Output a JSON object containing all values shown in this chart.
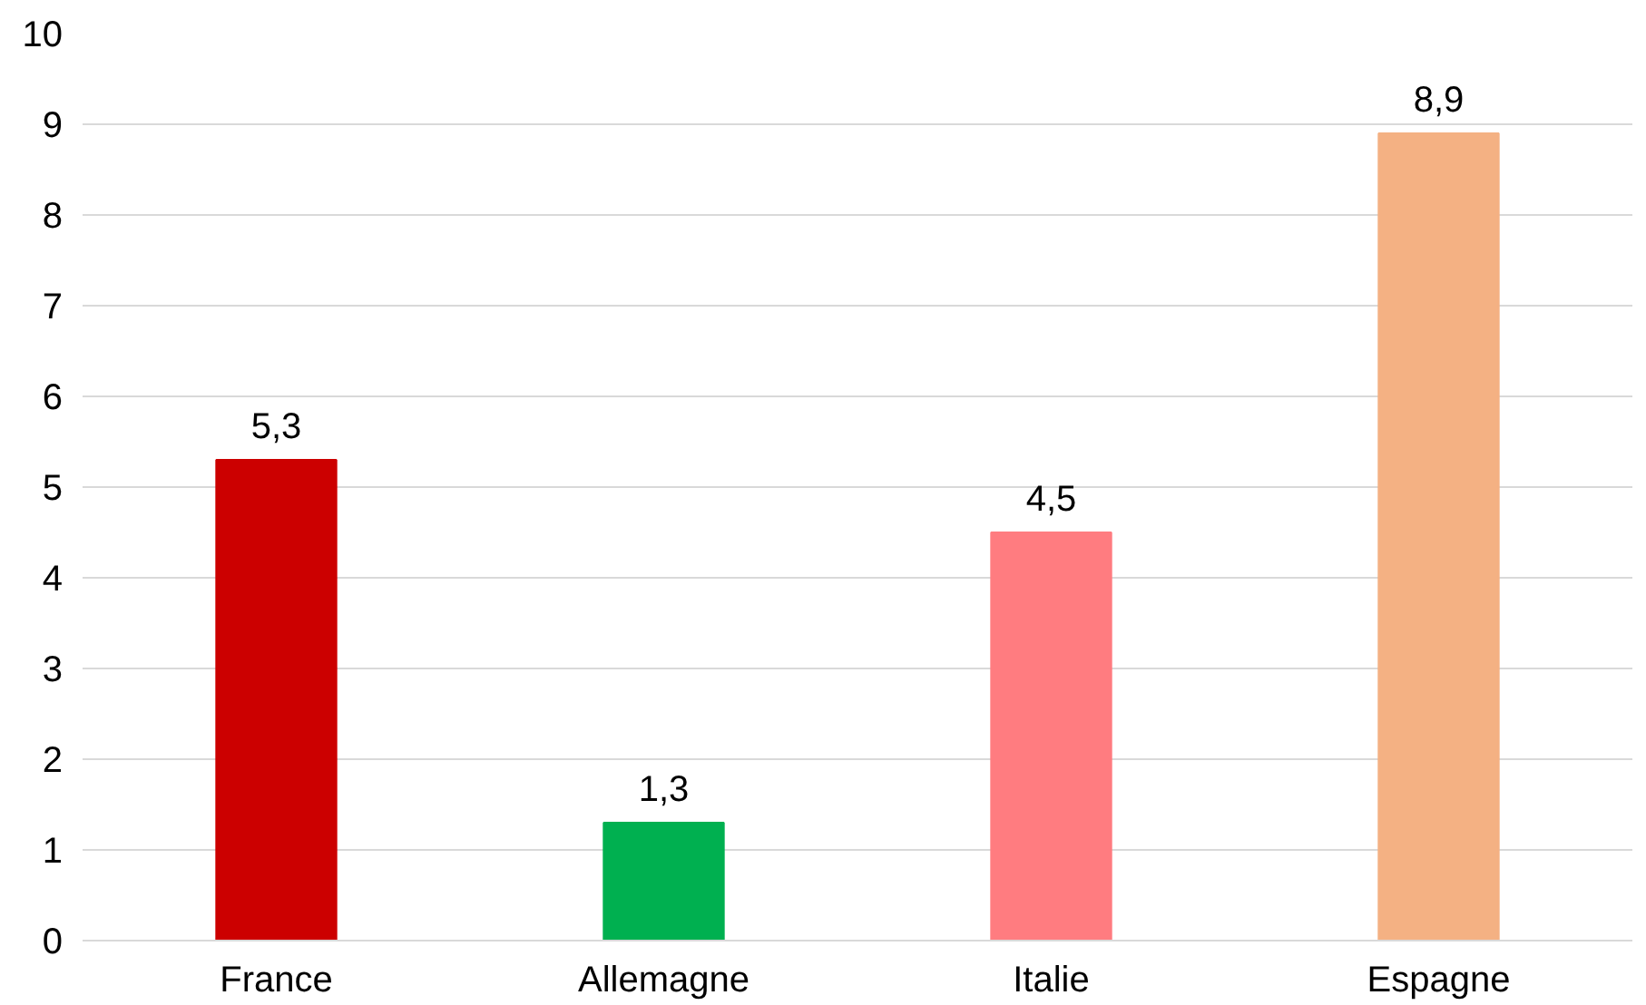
{
  "chart_data": {
    "type": "bar",
    "categories": [
      "France",
      "Allemagne",
      "Italie",
      "Espagne"
    ],
    "values": [
      5.3,
      1.3,
      4.5,
      8.9
    ],
    "colors": [
      "#cc0000",
      "#00b050",
      "#ff7c80",
      "#f4b183"
    ],
    "value_labels": [
      "5,3",
      "1,3",
      "4,5",
      "8,9"
    ],
    "ylim": [
      0,
      10
    ],
    "yticks": [
      0,
      1,
      2,
      3,
      4,
      5,
      6,
      7,
      8,
      9,
      10
    ],
    "grid": "y"
  }
}
